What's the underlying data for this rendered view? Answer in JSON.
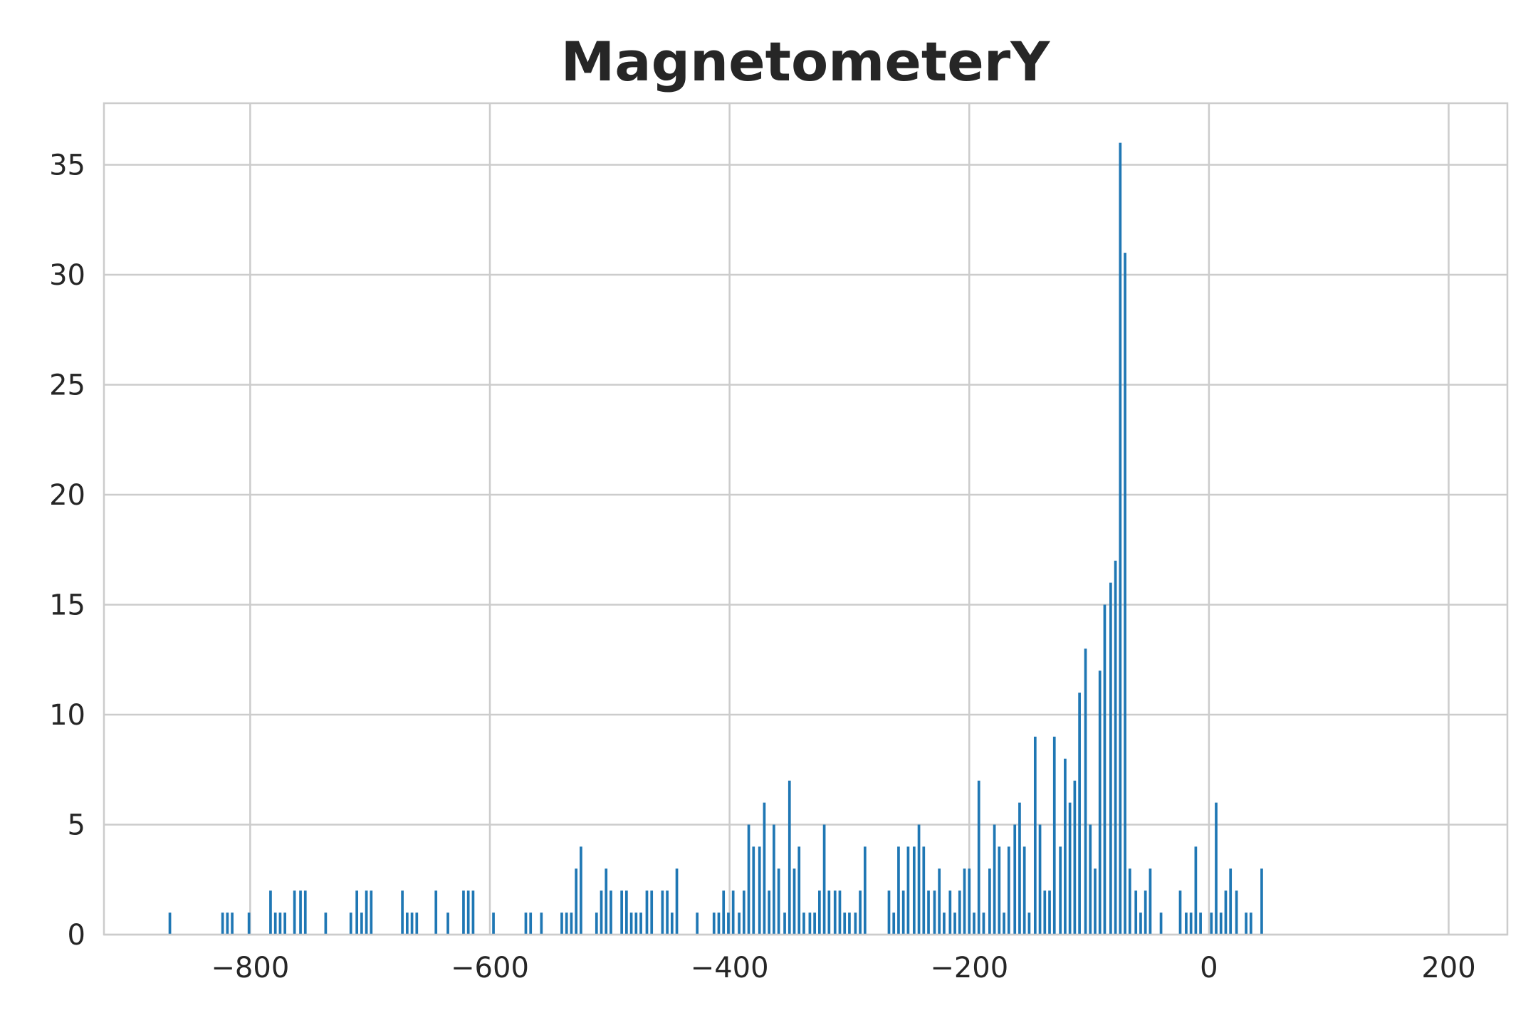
{
  "chart_data": {
    "type": "bar",
    "title": "MagnetometerY",
    "xlabel": "",
    "ylabel": "",
    "xlim": [
      -922,
      249
    ],
    "ylim": [
      0,
      37.8
    ],
    "xticks": [
      -800,
      -600,
      -400,
      -200,
      0,
      200
    ],
    "xtick_labels": [
      "−800",
      "−600",
      "−400",
      "−200",
      "0",
      "200"
    ],
    "yticks": [
      0,
      5,
      10,
      15,
      20,
      25,
      30,
      35
    ],
    "ytick_labels": [
      "0",
      "5",
      "10",
      "15",
      "20",
      "25",
      "30",
      "35"
    ],
    "grid": true,
    "bar_color": "#1f77b4",
    "bar_width": 2.2,
    "series": [
      {
        "x": [
          -867,
          -823,
          -819,
          -815,
          -801,
          -783,
          -779,
          -775,
          -771,
          -763,
          -758,
          -754,
          -737,
          -716,
          -711,
          -707,
          -703,
          -699,
          -673,
          -669,
          -665,
          -661,
          -645,
          -635,
          -622,
          -618,
          -614,
          -597,
          -570,
          -566,
          -557,
          -540,
          -536,
          -532,
          -528,
          -524,
          -520,
          -511,
          -507,
          -503,
          -499,
          -490,
          -486,
          -482,
          -478,
          -474,
          -469,
          -465,
          -456,
          -452,
          -448,
          -444,
          -439,
          -427,
          -418,
          -413,
          -409,
          -405,
          -401,
          -397,
          -392,
          -388,
          -384,
          -380,
          -375,
          -371,
          -367,
          -363,
          -359,
          -354,
          -350,
          -346,
          -342,
          -338,
          -333,
          -329,
          -325,
          -321,
          -317,
          -312,
          -308,
          -304,
          -300,
          -295,
          -291,
          -287,
          -267,
          -263,
          -259,
          -255,
          -251,
          -246,
          -242,
          -238,
          -234,
          -229,
          -225,
          -221,
          -216,
          -212,
          -208,
          -204,
          -200,
          -196,
          -192,
          -188,
          -183,
          -179,
          -175,
          -171,
          -167,
          -162,
          -158,
          -154,
          -150,
          -145,
          -141,
          -137,
          -133,
          -129,
          -124,
          -120,
          -116,
          -112,
          -108,
          -103,
          -99,
          -95,
          -91,
          -87,
          -82,
          -78,
          -74,
          -70,
          -66,
          -61,
          -57,
          -53,
          -49,
          -45,
          -40,
          -36,
          -32,
          -28,
          -24,
          -19,
          -15,
          -11,
          -7,
          -3,
          2,
          6,
          10,
          14,
          18,
          23,
          27,
          31,
          35,
          39,
          44,
          48,
          52,
          56,
          60,
          65,
          69,
          73,
          77,
          81,
          86,
          90,
          94,
          98,
          102,
          107,
          111,
          115,
          119,
          123,
          128,
          132,
          136,
          140,
          144,
          149,
          153,
          157,
          161,
          165,
          170,
          174,
          178,
          182,
          186,
          191,
          195
        ],
        "values": [
          1,
          1,
          1,
          1,
          1,
          2,
          1,
          1,
          1,
          2,
          2,
          2,
          1,
          1,
          2,
          1,
          2,
          2,
          2,
          1,
          1,
          1,
          2,
          1,
          2,
          2,
          2,
          1,
          1,
          1,
          1,
          1,
          1,
          1,
          3,
          4,
          0,
          1,
          2,
          3,
          2,
          2,
          2,
          1,
          1,
          1,
          2,
          2,
          2,
          2,
          1,
          3,
          0,
          1,
          0,
          1,
          1,
          2,
          1,
          2,
          1,
          2,
          5,
          4,
          4,
          6,
          2,
          5,
          3,
          1,
          7,
          3,
          4,
          1,
          1,
          1,
          2,
          5,
          2,
          2,
          2,
          1,
          1,
          1,
          2,
          4,
          2,
          1,
          4,
          2,
          4,
          4,
          5,
          4,
          2,
          2,
          3,
          1,
          2,
          1,
          2,
          3,
          3,
          1,
          7,
          1,
          3,
          5,
          4,
          1,
          4,
          5,
          6,
          4,
          1,
          9,
          5,
          2,
          2,
          9,
          4,
          8,
          6,
          7,
          11,
          13,
          5,
          3,
          12,
          15,
          16,
          17,
          36,
          31,
          3,
          2,
          1,
          2,
          3,
          0,
          1,
          0,
          0,
          0,
          2,
          1,
          1,
          4,
          1,
          0,
          1,
          6,
          1,
          2,
          3,
          2,
          0,
          1,
          1,
          0,
          3,
          0,
          0,
          0,
          0,
          0,
          0,
          0,
          0,
          0,
          0,
          0,
          0,
          0,
          0,
          0,
          0,
          0,
          0,
          0,
          0,
          0,
          0,
          0,
          0,
          0,
          0,
          0,
          0,
          0,
          0,
          0,
          0,
          0,
          0,
          0,
          0
        ]
      }
    ]
  }
}
